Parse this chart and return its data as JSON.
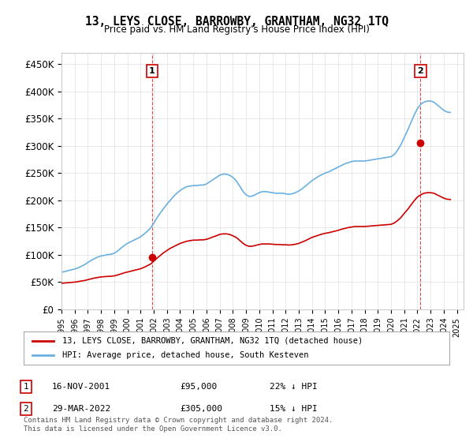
{
  "title": "13, LEYS CLOSE, BARROWBY, GRANTHAM, NG32 1TQ",
  "subtitle": "Price paid vs. HM Land Registry's House Price Index (HPI)",
  "ylabel_ticks": [
    "£0",
    "£50K",
    "£100K",
    "£150K",
    "£200K",
    "£250K",
    "£300K",
    "£350K",
    "£400K",
    "£450K"
  ],
  "ytick_values": [
    0,
    50000,
    100000,
    150000,
    200000,
    250000,
    300000,
    350000,
    400000,
    450000
  ],
  "ylim": [
    0,
    470000
  ],
  "xlim_start": 1995.0,
  "xlim_end": 2025.5,
  "hpi_color": "#6ab0e0",
  "price_color": "#cc0000",
  "marker1_date": 2001.88,
  "marker1_price": 95000,
  "marker2_date": 2022.24,
  "marker2_price": 305000,
  "legend_line1": "13, LEYS CLOSE, BARROWBY, GRANTHAM, NG32 1TQ (detached house)",
  "legend_line2": "HPI: Average price, detached house, South Kesteven",
  "table_row1": [
    "1",
    "16-NOV-2001",
    "£95,000",
    "22% ↓ HPI"
  ],
  "table_row2": [
    "2",
    "29-MAR-2022",
    "£305,000",
    "15% ↓ HPI"
  ],
  "footnote": "Contains HM Land Registry data © Crown copyright and database right 2024.\nThis data is licensed under the Open Government Licence v3.0.",
  "bg_color": "#ffffff",
  "grid_color": "#e0e0e0",
  "hpi_years": [
    1995,
    1995.25,
    1995.5,
    1995.75,
    1996,
    1996.25,
    1996.5,
    1996.75,
    1997,
    1997.25,
    1997.5,
    1997.75,
    1998,
    1998.25,
    1998.5,
    1998.75,
    1999,
    1999.25,
    1999.5,
    1999.75,
    2000,
    2000.25,
    2000.5,
    2000.75,
    2001,
    2001.25,
    2001.5,
    2001.75,
    2002,
    2002.25,
    2002.5,
    2002.75,
    2003,
    2003.25,
    2003.5,
    2003.75,
    2004,
    2004.25,
    2004.5,
    2004.75,
    2005,
    2005.25,
    2005.5,
    2005.75,
    2006,
    2006.25,
    2006.5,
    2006.75,
    2007,
    2007.25,
    2007.5,
    2007.75,
    2008,
    2008.25,
    2008.5,
    2008.75,
    2009,
    2009.25,
    2009.5,
    2009.75,
    2010,
    2010.25,
    2010.5,
    2010.75,
    2011,
    2011.25,
    2011.5,
    2011.75,
    2012,
    2012.25,
    2012.5,
    2012.75,
    2013,
    2013.25,
    2013.5,
    2013.75,
    2014,
    2014.25,
    2014.5,
    2014.75,
    2015,
    2015.25,
    2015.5,
    2015.75,
    2016,
    2016.25,
    2016.5,
    2016.75,
    2017,
    2017.25,
    2017.5,
    2017.75,
    2018,
    2018.25,
    2018.5,
    2018.75,
    2019,
    2019.25,
    2019.5,
    2019.75,
    2020,
    2020.25,
    2020.5,
    2020.75,
    2021,
    2021.25,
    2021.5,
    2021.75,
    2022,
    2022.25,
    2022.5,
    2022.75,
    2023,
    2023.25,
    2023.5,
    2023.75,
    2024,
    2024.25,
    2024.5
  ],
  "hpi_values": [
    68000,
    69500,
    71000,
    72500,
    74000,
    76000,
    79000,
    82000,
    86000,
    90000,
    93000,
    96000,
    98000,
    99000,
    100500,
    101000,
    103000,
    107000,
    112000,
    117000,
    121000,
    124000,
    127000,
    130000,
    133000,
    138000,
    143000,
    149000,
    158000,
    168000,
    177000,
    185000,
    193000,
    200000,
    207000,
    213000,
    218000,
    222000,
    225000,
    226000,
    227000,
    227000,
    228000,
    228000,
    230000,
    234000,
    238000,
    242000,
    246000,
    248000,
    248000,
    246000,
    242000,
    236000,
    227000,
    217000,
    210000,
    207000,
    208000,
    211000,
    214000,
    216000,
    216000,
    215000,
    214000,
    213000,
    213000,
    213000,
    212000,
    211000,
    212000,
    214000,
    217000,
    221000,
    226000,
    231000,
    236000,
    240000,
    244000,
    247000,
    250000,
    252000,
    255000,
    258000,
    261000,
    264000,
    267000,
    269000,
    271000,
    272000,
    272000,
    272000,
    272000,
    273000,
    274000,
    275000,
    276000,
    277000,
    278000,
    279000,
    280000,
    284000,
    292000,
    302000,
    315000,
    328000,
    342000,
    356000,
    368000,
    376000,
    380000,
    382000,
    382000,
    380000,
    375000,
    370000,
    365000,
    362000,
    361000
  ],
  "price_years": [
    1995,
    1995.25,
    1995.5,
    1995.75,
    1996,
    1996.25,
    1996.5,
    1996.75,
    1997,
    1997.25,
    1997.5,
    1997.75,
    1998,
    1998.25,
    1998.5,
    1998.75,
    1999,
    1999.25,
    1999.5,
    1999.75,
    2000,
    2000.25,
    2000.5,
    2000.75,
    2001,
    2001.25,
    2001.5,
    2001.75,
    2002,
    2002.25,
    2002.5,
    2002.75,
    2003,
    2003.25,
    2003.5,
    2003.75,
    2004,
    2004.25,
    2004.5,
    2004.75,
    2005,
    2005.25,
    2005.5,
    2005.75,
    2006,
    2006.25,
    2006.5,
    2006.75,
    2007,
    2007.25,
    2007.5,
    2007.75,
    2008,
    2008.25,
    2008.5,
    2008.75,
    2009,
    2009.25,
    2009.5,
    2009.75,
    2010,
    2010.25,
    2010.5,
    2010.75,
    2011,
    2011.25,
    2011.5,
    2011.75,
    2012,
    2012.25,
    2012.5,
    2012.75,
    2013,
    2013.25,
    2013.5,
    2013.75,
    2014,
    2014.25,
    2014.5,
    2014.75,
    2015,
    2015.25,
    2015.5,
    2015.75,
    2016,
    2016.25,
    2016.5,
    2016.75,
    2017,
    2017.25,
    2017.5,
    2017.75,
    2018,
    2018.25,
    2018.5,
    2018.75,
    2019,
    2019.25,
    2019.5,
    2019.75,
    2020,
    2020.25,
    2020.5,
    2020.75,
    2021,
    2021.25,
    2021.5,
    2021.75,
    2022,
    2022.25,
    2022.5,
    2022.75,
    2023,
    2023.25,
    2023.5,
    2023.75,
    2024,
    2024.25,
    2024.5
  ],
  "price_values": [
    48000,
    48500,
    49000,
    49500,
    50000,
    51000,
    52000,
    53000,
    54500,
    56000,
    57500,
    58500,
    59500,
    60000,
    60500,
    60800,
    61500,
    63000,
    65000,
    67000,
    68500,
    70000,
    71500,
    73000,
    74500,
    77000,
    80000,
    83000,
    88500,
    94000,
    99000,
    104000,
    108000,
    112000,
    115000,
    118000,
    121000,
    123000,
    125000,
    126000,
    127000,
    127000,
    127500,
    127500,
    128500,
    130500,
    133000,
    135000,
    137500,
    138500,
    138500,
    137500,
    135000,
    132000,
    127000,
    121500,
    117500,
    115500,
    116000,
    117500,
    119000,
    120000,
    120000,
    120000,
    119500,
    119000,
    119000,
    118500,
    118500,
    118000,
    118500,
    119500,
    121000,
    123500,
    126000,
    129000,
    132000,
    134000,
    136000,
    138000,
    139500,
    140500,
    142000,
    143500,
    145000,
    147000,
    148500,
    150000,
    151000,
    152000,
    152000,
    152000,
    152000,
    152500,
    153000,
    153500,
    154000,
    154500,
    155000,
    155500,
    156000,
    158500,
    163000,
    168500,
    176000,
    183000,
    191000,
    199000,
    206000,
    210000,
    213000,
    214000,
    214000,
    213000,
    210000,
    207000,
    204000,
    202000,
    201500
  ]
}
